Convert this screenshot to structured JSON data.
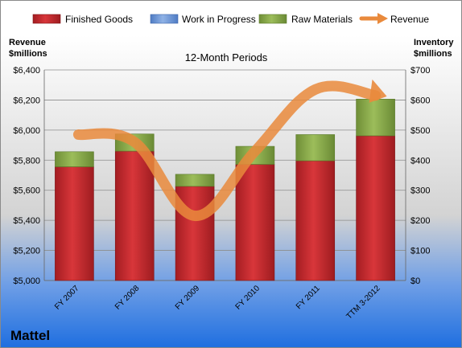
{
  "company": "Mattel",
  "chart_data": {
    "type": "bar",
    "title": "12-Month Periods",
    "categories": [
      "FY 2007",
      "FY 2008",
      "FY 2009",
      "FY 2010",
      "FY 2011",
      "TTM 3-2012"
    ],
    "series": [
      {
        "name": "Finished Goods",
        "axis": "right",
        "values": [
          378,
          430,
          313,
          386,
          398,
          481
        ],
        "color": "#c0262b"
      },
      {
        "name": "Work in Progress",
        "axis": "right",
        "values": [
          0,
          0,
          0,
          0,
          0,
          0
        ],
        "color": "#6f97d6"
      },
      {
        "name": "Raw Materials",
        "axis": "right",
        "values": [
          50,
          57,
          40,
          60,
          87,
          122
        ],
        "color": "#86a94a"
      },
      {
        "name": "Revenue",
        "axis": "left",
        "type": "line",
        "values": [
          5970,
          5920,
          5430,
          5860,
          6270,
          6230
        ],
        "color": "#e98a3c"
      }
    ],
    "y_left": {
      "label": "Revenue\n$millions",
      "min": 5000,
      "max": 6400,
      "step": 200,
      "ticks": [
        "$5,000",
        "$5,200",
        "$5,400",
        "$5,600",
        "$5,800",
        "$6,000",
        "$6,200",
        "$6,400"
      ]
    },
    "y_right": {
      "label": "Inventory\n$millions",
      "min": 0,
      "max": 700,
      "step": 100,
      "ticks": [
        "$0",
        "$100",
        "$200",
        "$300",
        "$400",
        "$500",
        "$600",
        "$700"
      ]
    },
    "legend_position": "top",
    "grid": true
  }
}
